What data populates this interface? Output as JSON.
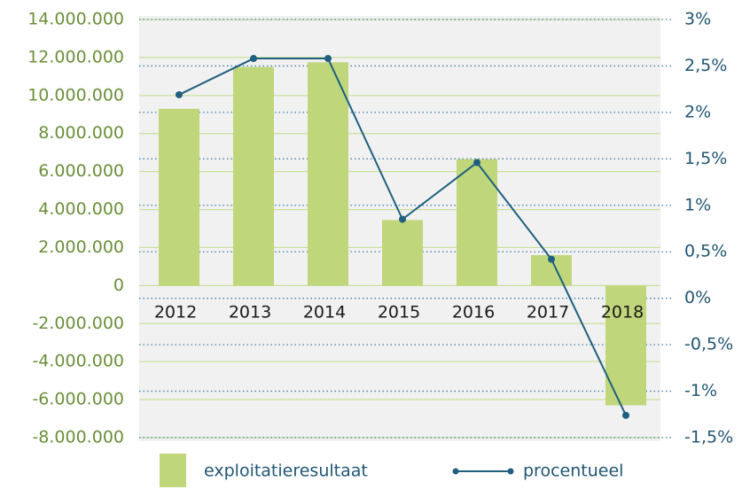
{
  "chart_data": {
    "type": "bar_line",
    "categories": [
      "2012",
      "2013",
      "2014",
      "2015",
      "2016",
      "2017",
      "2018"
    ],
    "series": [
      {
        "name": "exploitatieresultaat",
        "type": "bar",
        "color": "#bfd77a",
        "axis": "y",
        "values": [
          9300000,
          11500000,
          11750000,
          3450000,
          6650000,
          1600000,
          -6300000
        ]
      },
      {
        "name": "procentueel",
        "type": "line",
        "color": "#1f5f7f",
        "axis": "y2",
        "values": [
          2.19,
          2.58,
          2.58,
          0.85,
          1.46,
          0.42,
          -1.26
        ]
      }
    ],
    "ylim": [
      -8000000,
      14000000
    ],
    "yticks": [
      {
        "value": -8000000,
        "label": "-8.000.000"
      },
      {
        "value": -6000000,
        "label": "-6.000.000"
      },
      {
        "value": -4000000,
        "label": "-4.000.000"
      },
      {
        "value": -2000000,
        "label": "-2.000.000"
      },
      0,
      {
        "value": 2000000,
        "label": "2.000.000"
      },
      {
        "value": 4000000,
        "label": "4.000.000"
      },
      {
        "value": 6000000,
        "label": "6.000.000"
      },
      {
        "value": 8000000,
        "label": "8.000.000"
      },
      {
        "value": 10000000,
        "label": "10.000.000"
      },
      {
        "value": 12000000,
        "label": "12.000.000"
      },
      {
        "value": 14000000,
        "label": "14.000.000"
      }
    ],
    "y2lim": [
      -1.5,
      3
    ],
    "y2ticks": [
      {
        "value": -1.5,
        "label": "-1,5%"
      },
      {
        "value": -1,
        "label": "-1%"
      },
      {
        "value": -0.5,
        "label": "-0,5%"
      },
      {
        "value": 0,
        "label": "0%"
      },
      {
        "value": 0.5,
        "label": "0,5%"
      },
      {
        "value": 1,
        "label": "1%"
      },
      {
        "value": 1.5,
        "label": "1,5%"
      },
      {
        "value": 2,
        "label": "2%"
      },
      {
        "value": 2.5,
        "label": "2,5%"
      },
      {
        "value": 3,
        "label": "3%"
      }
    ],
    "grid": true
  }
}
